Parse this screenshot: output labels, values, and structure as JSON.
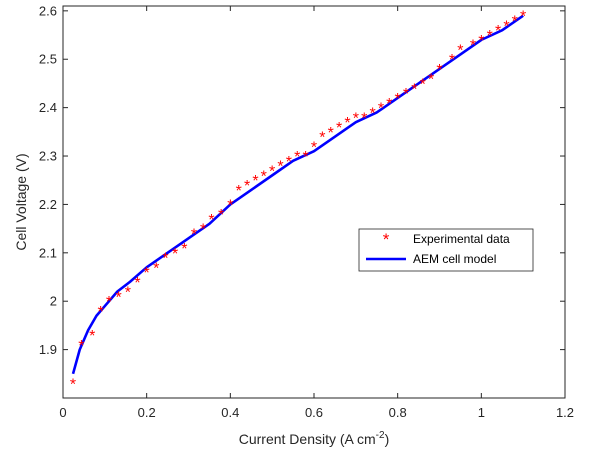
{
  "chart_data": {
    "type": "line",
    "title": "",
    "xlabel": "Current Density (A cm",
    "xlabel_sup": "-2",
    "xlabel_end": ")",
    "ylabel": "Cell Voltage (V)",
    "xlim": [
      0,
      1.2
    ],
    "ylim": [
      1.8,
      2.61
    ],
    "xticks": [
      0,
      0.2,
      0.4,
      0.6,
      0.8,
      1,
      1.2
    ],
    "xtick_labels": [
      "0",
      "0.2",
      "0.4",
      "0.6",
      "0.8",
      "1",
      "1.2"
    ],
    "yticks": [
      1.9,
      2.0,
      2.1,
      2.2,
      2.3,
      2.4,
      2.5,
      2.6
    ],
    "ytick_labels": [
      "1.9",
      "2",
      "2.1",
      "2.2",
      "2.3",
      "2.4",
      "2.5",
      "2.6"
    ],
    "grid": false,
    "legend_position": "center-right",
    "series": [
      {
        "name": "Experimental data",
        "style": "markers",
        "marker_glyph": "*",
        "color": "#ff0000",
        "x": [
          0.024,
          0.044,
          0.07,
          0.09,
          0.11,
          0.133,
          0.155,
          0.178,
          0.2,
          0.223,
          0.245,
          0.268,
          0.29,
          0.313,
          0.335,
          0.355,
          0.378,
          0.4,
          0.42,
          0.44,
          0.46,
          0.48,
          0.5,
          0.52,
          0.54,
          0.56,
          0.58,
          0.6,
          0.62,
          0.64,
          0.66,
          0.68,
          0.7,
          0.72,
          0.74,
          0.76,
          0.78,
          0.8,
          0.82,
          0.84,
          0.86,
          0.88,
          0.9,
          0.93,
          0.95,
          0.98,
          1.0,
          1.02,
          1.04,
          1.06,
          1.08,
          1.1
        ],
        "y": [
          1.83,
          1.91,
          1.93,
          1.98,
          2.0,
          2.01,
          2.02,
          2.04,
          2.06,
          2.07,
          2.09,
          2.1,
          2.11,
          2.14,
          2.15,
          2.17,
          2.18,
          2.2,
          2.23,
          2.24,
          2.25,
          2.26,
          2.27,
          2.28,
          2.29,
          2.3,
          2.3,
          2.32,
          2.34,
          2.35,
          2.36,
          2.37,
          2.38,
          2.38,
          2.39,
          2.4,
          2.41,
          2.42,
          2.43,
          2.44,
          2.45,
          2.46,
          2.48,
          2.5,
          2.52,
          2.53,
          2.54,
          2.55,
          2.56,
          2.57,
          2.58,
          2.59
        ]
      },
      {
        "name": "AEM cell model",
        "style": "line",
        "color": "#0000ff",
        "x": [
          0.024,
          0.04,
          0.06,
          0.08,
          0.1,
          0.13,
          0.16,
          0.2,
          0.25,
          0.3,
          0.35,
          0.4,
          0.45,
          0.5,
          0.55,
          0.6,
          0.65,
          0.7,
          0.75,
          0.8,
          0.85,
          0.9,
          0.95,
          1.0,
          1.05,
          1.1
        ],
        "y": [
          1.85,
          1.9,
          1.94,
          1.97,
          1.99,
          2.02,
          2.04,
          2.07,
          2.1,
          2.13,
          2.16,
          2.2,
          2.23,
          2.26,
          2.29,
          2.31,
          2.34,
          2.37,
          2.39,
          2.42,
          2.45,
          2.48,
          2.51,
          2.54,
          2.56,
          2.59
        ]
      }
    ]
  }
}
